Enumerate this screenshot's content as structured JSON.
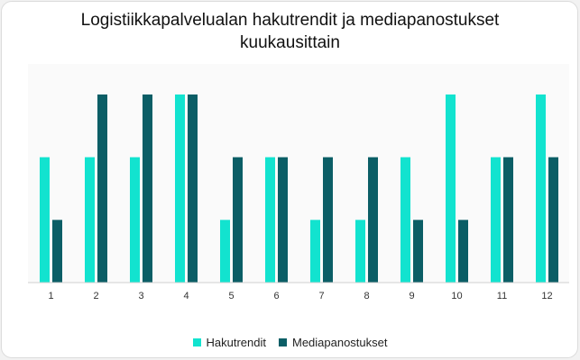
{
  "chart_data": {
    "type": "bar",
    "title_lines": [
      "Logistiikkapalvelualan hakutrendit ja mediapanostukset",
      "kuukausittain"
    ],
    "categories": [
      "1",
      "2",
      "3",
      "4",
      "5",
      "6",
      "7",
      "8",
      "9",
      "10",
      "11",
      "12"
    ],
    "series": [
      {
        "name": "Hakutrendit",
        "color": "#12e3cf",
        "values": [
          2,
          2,
          2,
          3,
          1,
          2,
          1,
          1,
          2,
          3,
          2,
          3
        ]
      },
      {
        "name": "Mediapanostukset",
        "color": "#0b5e66",
        "values": [
          1,
          3,
          3,
          3,
          2,
          2,
          2,
          2,
          1,
          1,
          2,
          2
        ]
      }
    ],
    "ylim": [
      0,
      3
    ],
    "grid": false,
    "legend_position": "bottom"
  }
}
